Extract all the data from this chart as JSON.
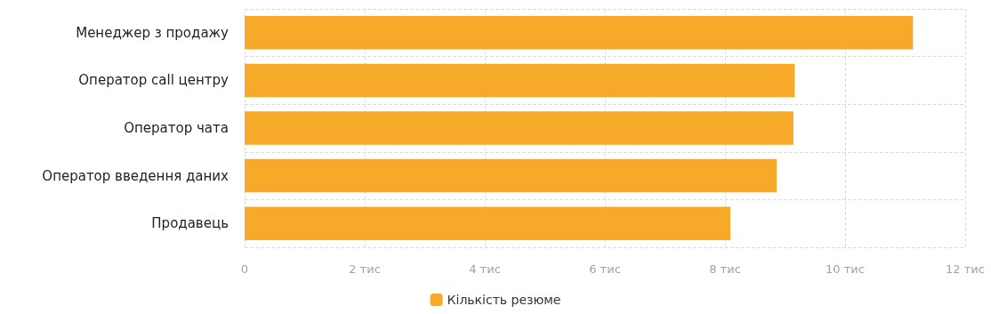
{
  "chart_data": {
    "type": "bar",
    "orientation": "horizontal",
    "categories": [
      "Менеджер з продажу",
      "Оператор call центру",
      "Оператор чата",
      "Оператор введення даних",
      "Продавець"
    ],
    "series": [
      {
        "name": "Кількість резюме",
        "color": "#f7a92a",
        "values": [
          11.13,
          9.16,
          9.14,
          8.86,
          8.09
        ]
      }
    ],
    "xlim": [
      0,
      12
    ],
    "xticks": [
      0,
      {
        "value": 2,
        "label": "2 тис"
      },
      {
        "value": 4,
        "label": "4 тис"
      },
      {
        "value": 6,
        "label": "6 тис"
      },
      {
        "value": 8,
        "label": "8 тис"
      },
      {
        "value": 10,
        "label": "10 тис"
      },
      {
        "value": 12,
        "label": "12 тис"
      }
    ],
    "grid": true,
    "legend": "bottom"
  }
}
